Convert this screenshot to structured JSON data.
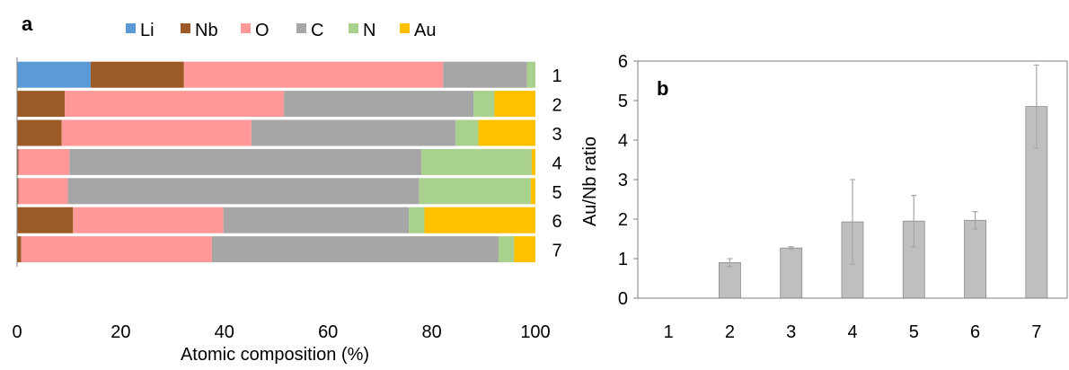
{
  "chart_data": [
    {
      "type": "bar",
      "orientation": "horizontal",
      "stacked": true,
      "panel_label": "a",
      "xlabel": "Atomic composition (%)",
      "xlim": [
        0,
        100
      ],
      "x_ticks": [
        0,
        20,
        40,
        60,
        80,
        100
      ],
      "categories": [
        "1",
        "2",
        "3",
        "4",
        "5",
        "6",
        "7"
      ],
      "legend_position": "top",
      "grid": false,
      "series": [
        {
          "name": "Li",
          "color": "#5b9bd5",
          "values": [
            14.2,
            0,
            0,
            0,
            0,
            0,
            0
          ]
        },
        {
          "name": "Nb",
          "color": "#9c5b26",
          "values": [
            18.0,
            9.2,
            8.6,
            0.3,
            0.3,
            10.8,
            0.8
          ]
        },
        {
          "name": "O",
          "color": "#ff9999",
          "values": [
            50.0,
            42.3,
            36.6,
            9.8,
            9.5,
            29.0,
            36.8
          ]
        },
        {
          "name": "C",
          "color": "#a6a6a6",
          "values": [
            16.2,
            36.6,
            39.4,
            67.9,
            67.8,
            35.8,
            55.3
          ]
        },
        {
          "name": "N",
          "color": "#a9d18e",
          "values": [
            1.6,
            4.0,
            4.4,
            21.3,
            21.5,
            3.0,
            3.0
          ]
        },
        {
          "name": "Au",
          "color": "#ffc000",
          "values": [
            0,
            7.9,
            11.0,
            0.7,
            0.9,
            21.4,
            4.1
          ]
        }
      ]
    },
    {
      "type": "bar",
      "panel_label": "b",
      "ylabel": "Au/Nb ratio",
      "ylim": [
        0,
        6
      ],
      "y_ticks": [
        0,
        1,
        2,
        3,
        4,
        5,
        6
      ],
      "categories": [
        "1",
        "2",
        "3",
        "4",
        "5",
        "6",
        "7"
      ],
      "grid": false,
      "bar_color": "#bfbfbf",
      "values": [
        0,
        0.9,
        1.27,
        1.93,
        1.95,
        1.97,
        4.85
      ],
      "error": [
        0,
        0.1,
        0.03,
        1.07,
        0.65,
        0.22,
        1.05
      ]
    }
  ]
}
